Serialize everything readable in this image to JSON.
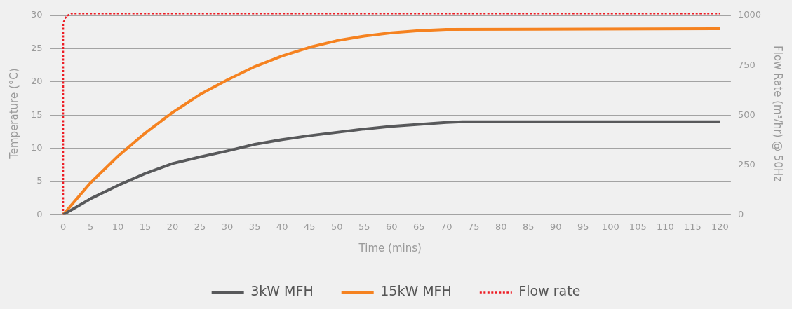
{
  "chart_data": {
    "type": "line",
    "xlabel": "Time (mins)",
    "ylabel": "Temperature (°C)",
    "y2label": "Flow Rate (m³/hr) @ 50Hz",
    "xlim": [
      -2.5,
      122
    ],
    "xticks": [
      0,
      5,
      10,
      15,
      20,
      25,
      30,
      35,
      40,
      45,
      50,
      55,
      60,
      65,
      70,
      75,
      80,
      85,
      90,
      95,
      100,
      105,
      110,
      115,
      120
    ],
    "ylim": [
      0,
      30.45
    ],
    "yticks": [
      0,
      5,
      10,
      15,
      20,
      25,
      30
    ],
    "y2lim": [
      0,
      1015
    ],
    "y2ticks": [
      0,
      250,
      500,
      750,
      1000
    ],
    "grid": "y",
    "legend": "bottom",
    "marker": "none",
    "series": [
      {
        "name": "3kW MFH",
        "color": "#58595b",
        "line_style": "solid",
        "x": [
          0,
          5,
          10,
          15,
          20,
          25,
          30,
          35,
          40,
          45,
          50,
          55,
          60,
          65,
          70,
          73,
          120
        ],
        "values": [
          0,
          2.4,
          4.4,
          6.2,
          7.7,
          8.7,
          9.6,
          10.6,
          11.3,
          11.9,
          12.4,
          12.9,
          13.3,
          13.6,
          13.9,
          14.0,
          14.0
        ]
      },
      {
        "name": "15kW MFH",
        "color": "#f58220",
        "line_style": "solid",
        "x": [
          0,
          5,
          10,
          15,
          20,
          25,
          30,
          35,
          40,
          45,
          50,
          55,
          60,
          65,
          70,
          120
        ],
        "values": [
          0,
          4.8,
          8.8,
          12.3,
          15.4,
          18.1,
          20.3,
          22.3,
          23.9,
          25.2,
          26.2,
          26.9,
          27.4,
          27.7,
          27.9,
          28.0
        ]
      },
      {
        "name": "Flow rate",
        "color": "#ed1c24",
        "line_style": "dotted",
        "axis": "y2",
        "x": [
          0,
          0,
          0.5,
          1.5,
          120
        ],
        "values": [
          0,
          960,
          995,
          1010,
          1010
        ]
      }
    ]
  }
}
